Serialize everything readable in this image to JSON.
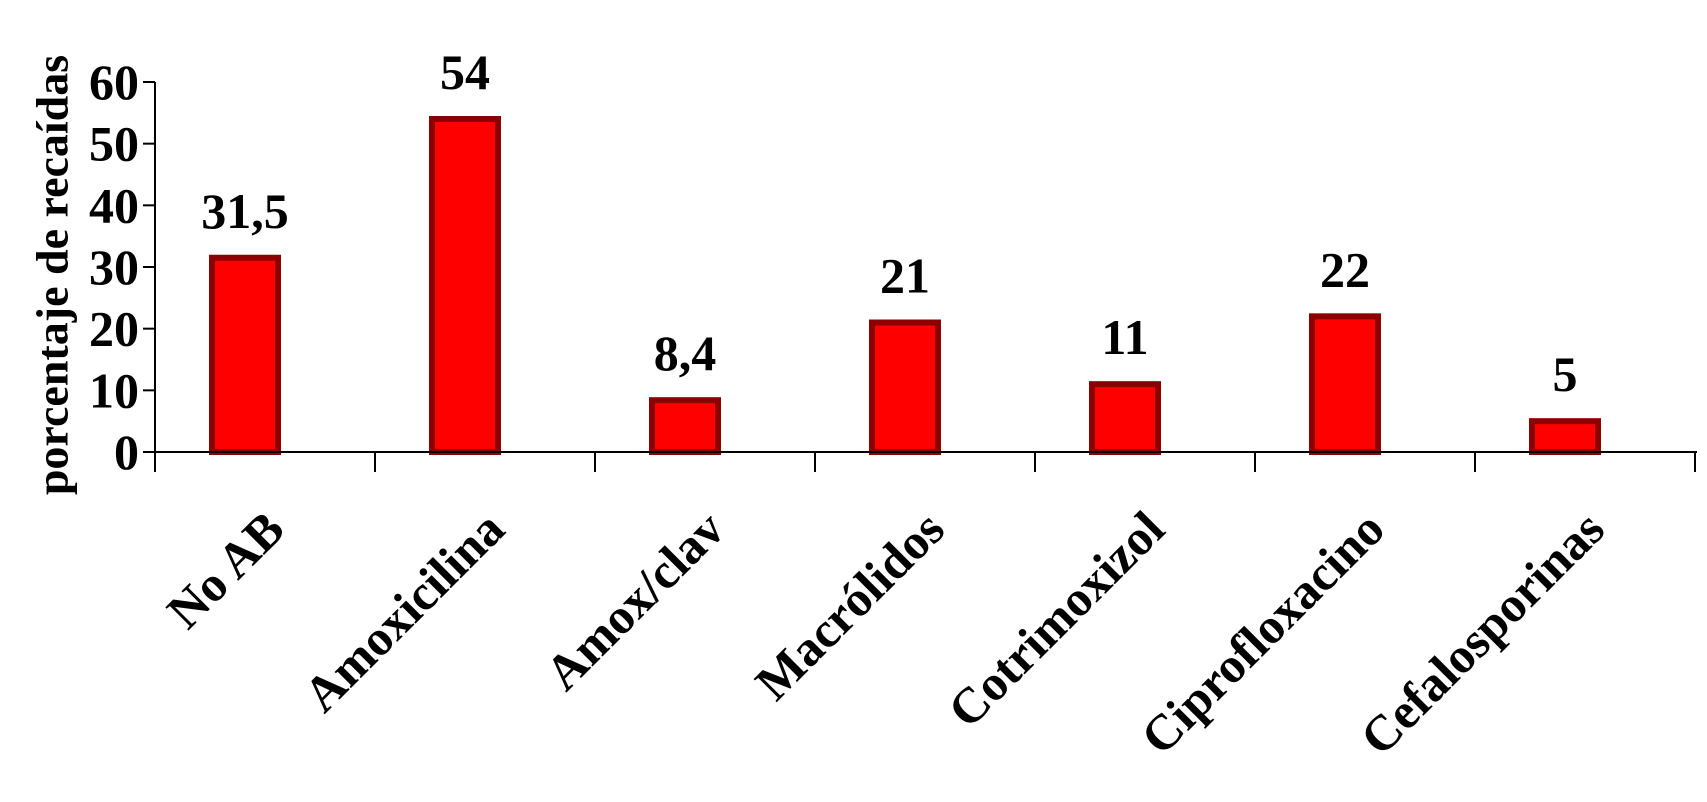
{
  "chart_data": {
    "type": "bar",
    "title": "",
    "xlabel": "",
    "ylabel": "porcentaje de recaídas",
    "categories": [
      "No AB",
      "Amoxicilina",
      "Amox/clav",
      "Macrólidos",
      "Cotrimoxizol",
      "Ciprofloxacino",
      "Cefalosporinas"
    ],
    "values": [
      31.5,
      54,
      8.4,
      21,
      11,
      22,
      5
    ],
    "value_labels": [
      "31,5",
      "54",
      "8,4",
      "21",
      "11",
      "22",
      "5"
    ],
    "yticks": [
      0,
      10,
      20,
      30,
      40,
      50,
      60
    ],
    "ylim": [
      0,
      60
    ],
    "grid": false,
    "legend": "none",
    "colors": {
      "bar_fill": "#ff0000",
      "bar_stroke": "#8b0000",
      "axis": "#000000"
    }
  }
}
